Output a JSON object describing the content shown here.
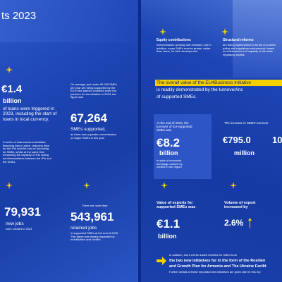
{
  "left_page": {
    "title": "ts 2023",
    "loans": {
      "amount": "€1.4",
      "unit": "billion",
      "desc": "of loans were triggered in 2023, including the start of loans in local currency.",
      "note": "A series of instruments to facilitate financing was in place, reducing risks for the IFIs and the cost of borrowing for SMEs, whilst at the same time enhancing the capacity of IFIs acting as intermediaries between the IFIs and the SMEs."
    },
    "smes": {
      "intro": "On average, just under 90 000 SMEs per year are being supported by the EU in the partner countries when the partners for the initiative in 2023, the figure was",
      "number": "67,264",
      "label": "SMEs supported,",
      "note": "as there was a greater concentration on larger SMEs in this year"
    },
    "jobs_new": {
      "number": "79,931",
      "label": "new jobs",
      "note": "were created in 2023"
    },
    "jobs_retained": {
      "intro": "There are more than",
      "number": "543,961",
      "label": "retained jobs",
      "note": "in supported SMEs at the end of 2023. This figure was largely impacted by mobilisation and conflict."
    }
  },
  "right_page": {
    "equity": {
      "heading": "Equity contributions",
      "text": "Intermediaries working with investors, but in addition, many SMEs receive grants, rather than loans, for their development."
    },
    "reforms": {
      "heading": "Structural reforms",
      "text": "are being implemented in terms of a better policy and regulatory environment, based on enhancement of capacity of the state regulatory bodies."
    },
    "highlight": {
      "line1": "The overall value of the EU4Business Initiative",
      "line2": "is readily demonstrated by the turnover/inc",
      "line3": "of supported SMEs."
    },
    "turnover": {
      "intro": "At the end of 2023, the turnover of EU-supported SMEs was",
      "amount": "€8.2",
      "unit": "billion",
      "note": "in spite of economic shrinkage caused by conflict in the region"
    },
    "increase": {
      "intro": "The increase in SMEs' turnover",
      "amount": "€795.0",
      "unit": "million",
      "next": "10"
    },
    "exports": {
      "intro": "Value of exports for supported SMEs was",
      "amount": "€1.1",
      "unit": "billion"
    },
    "volume": {
      "intro": "Volume of export increased by",
      "amount": "2.6%"
    },
    "footer": {
      "line1": "In addition, there will be added benefits for SMEs from",
      "line2": "the two new initiatives for in the form of the Resilien",
      "line3": "and Growth Plan for Armenia and The Ukraine Facilit",
      "line4": "Further details of these important new initiatives are given later in this rep"
    }
  }
}
